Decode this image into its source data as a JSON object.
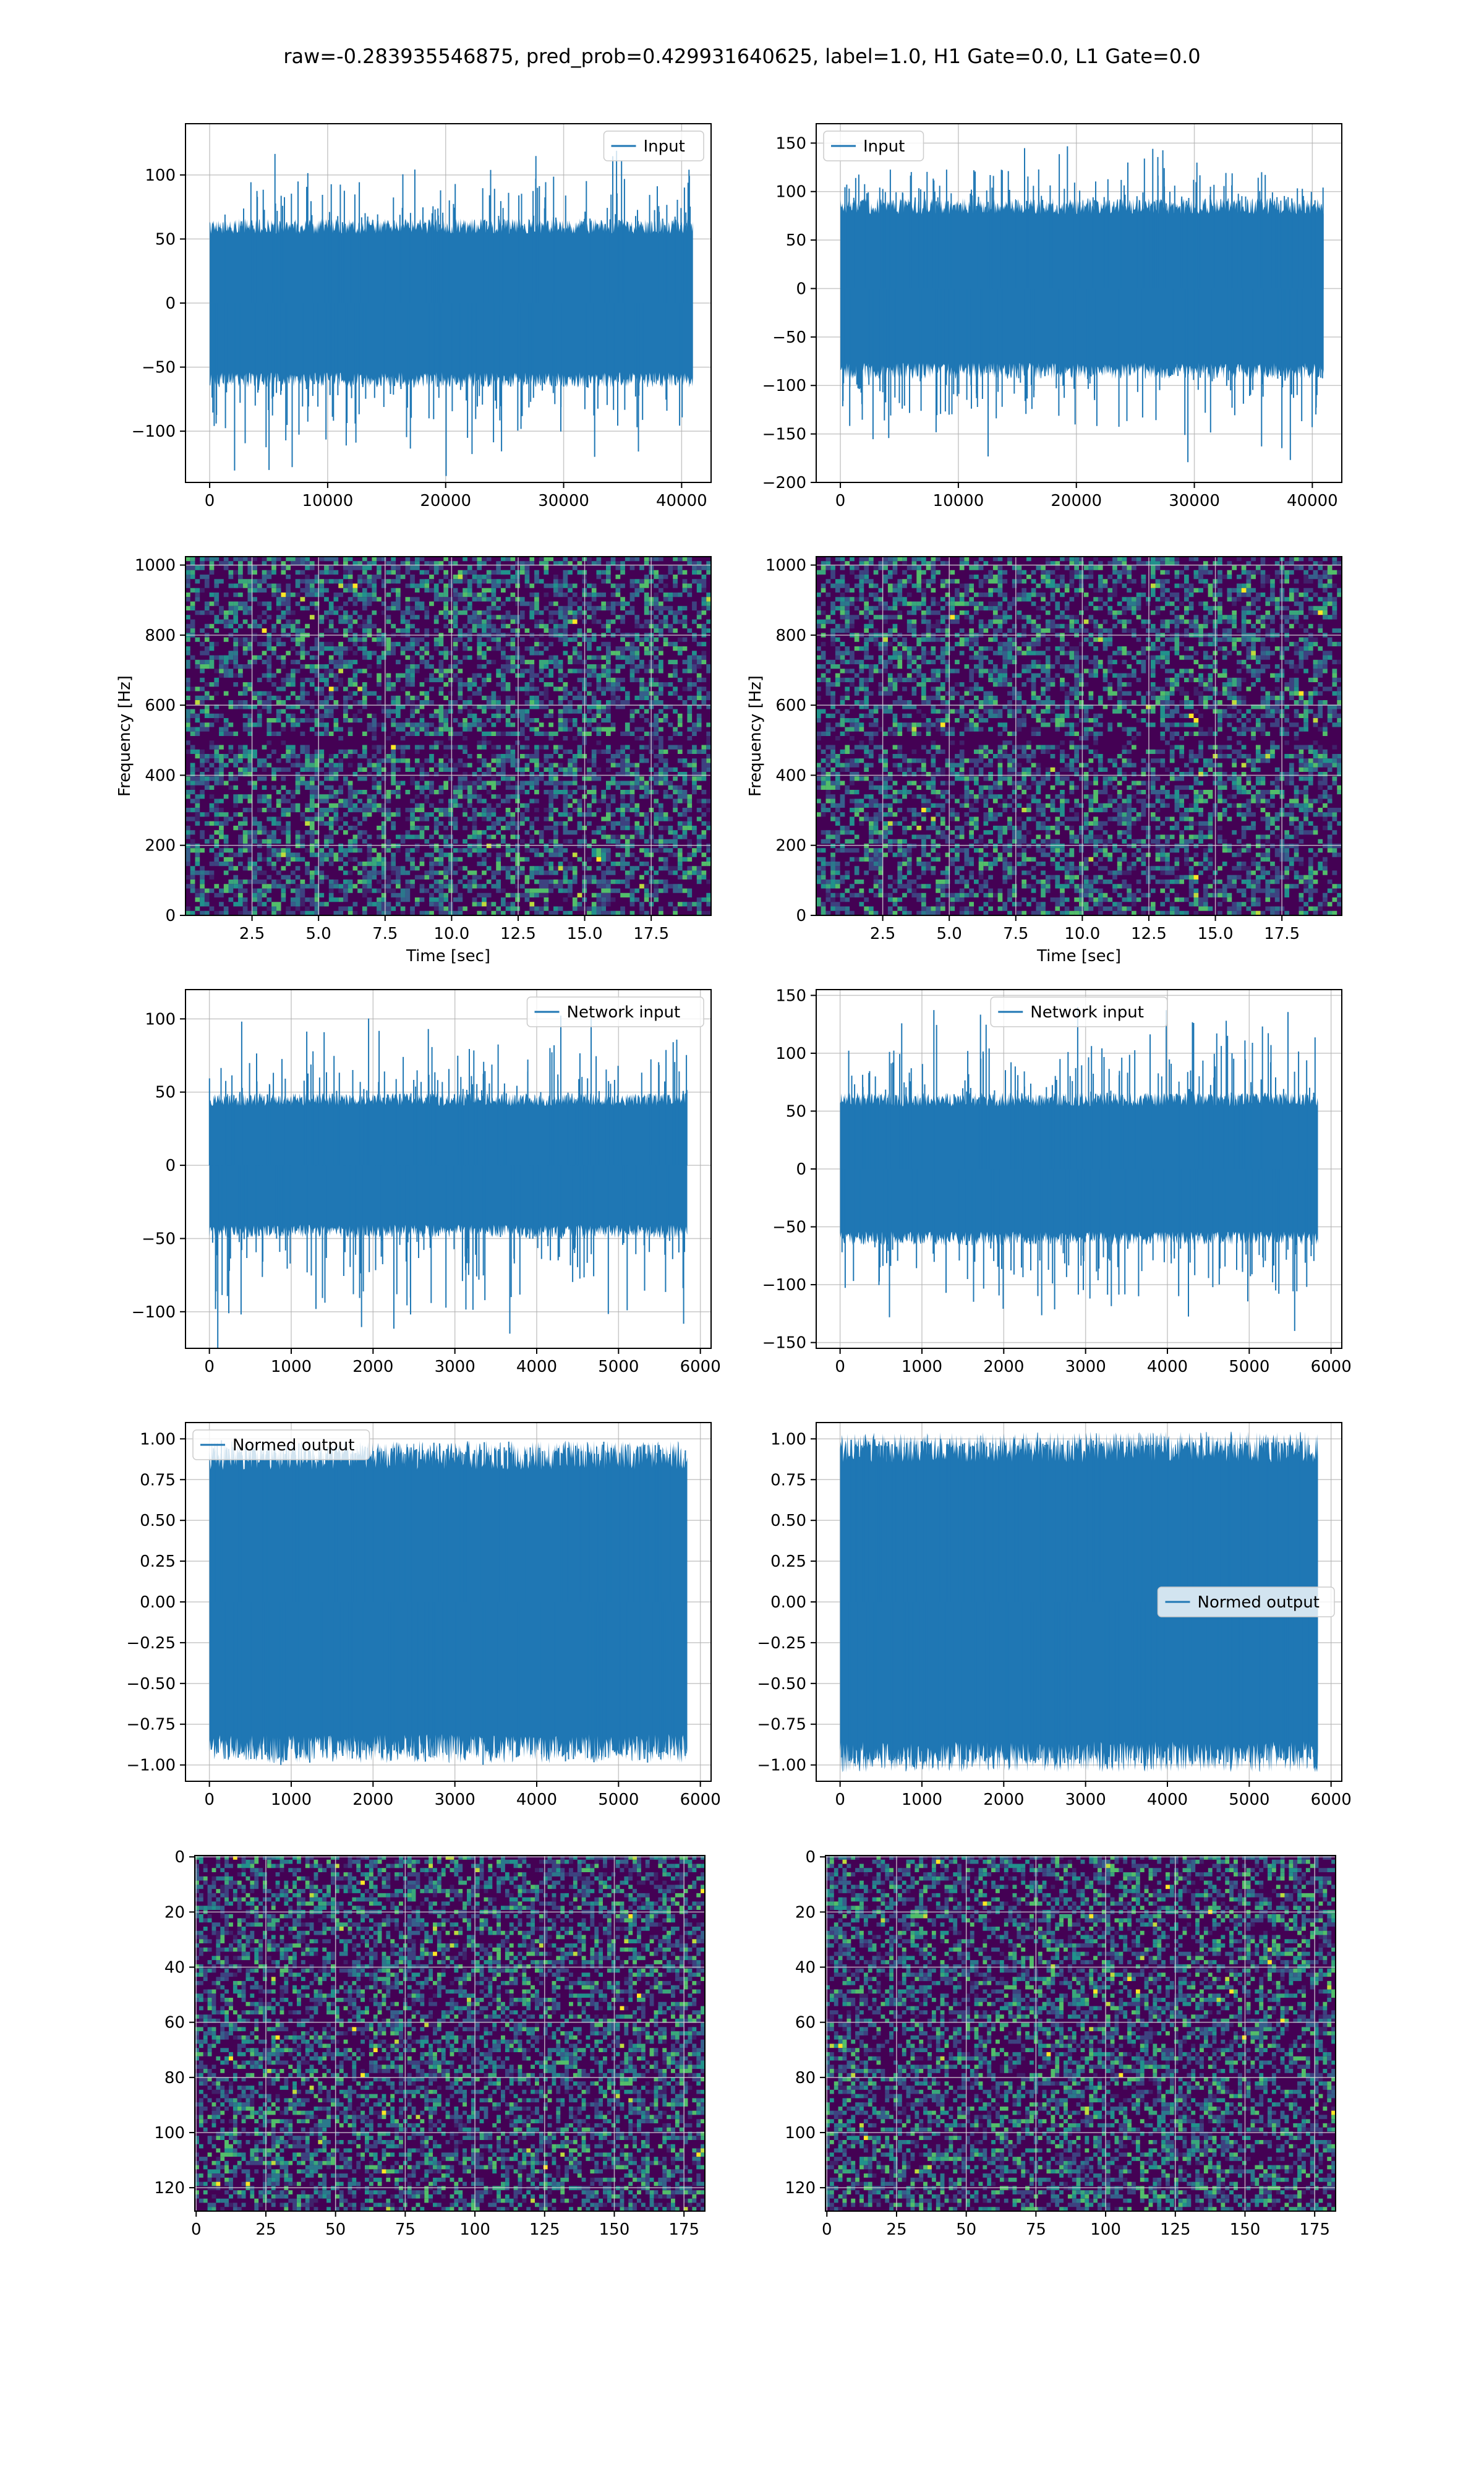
{
  "figure": {
    "suptitle": "raw=-0.283935546875, pred_prob=0.429931640625, label=1.0, H1 Gate=0.0, L1 Gate=0.0"
  },
  "colors": {
    "series": "#1f77b4",
    "grid": "#b0b0b0",
    "viridis_dark": "#440154",
    "viridis_mid": "#21918c",
    "viridis_bright": "#fde725"
  },
  "chart_data": [
    {
      "id": "h1-input",
      "type": "line",
      "title": "",
      "xlabel": "",
      "ylabel": "",
      "xlim": [
        -2048,
        42496
      ],
      "ylim": [
        -140,
        140
      ],
      "xticks": [
        0,
        10000,
        20000,
        30000,
        40000
      ],
      "yticks": [
        -100,
        -50,
        0,
        50,
        100
      ],
      "series": [
        {
          "name": "Input",
          "n": 40960,
          "x_range": [
            0,
            40960
          ],
          "core_amplitude": 60,
          "peak_max": 120,
          "peak_min": -135
        }
      ],
      "legend": "upper right",
      "grid": true
    },
    {
      "id": "l1-input",
      "type": "line",
      "title": "",
      "xlabel": "",
      "ylabel": "",
      "xlim": [
        -2048,
        42496
      ],
      "ylim": [
        -200,
        170
      ],
      "xticks": [
        0,
        10000,
        20000,
        30000,
        40000
      ],
      "yticks": [
        -200,
        -150,
        -100,
        -50,
        0,
        50,
        100,
        150
      ],
      "series": [
        {
          "name": "Input",
          "n": 40960,
          "x_range": [
            0,
            40960
          ],
          "core_amplitude": 85,
          "peak_max": 155,
          "peak_min": -185
        }
      ],
      "legend": "upper left",
      "grid": true
    },
    {
      "id": "h1-spectrogram",
      "type": "heatmap",
      "title": "",
      "xlabel": "Time [sec]",
      "ylabel": "Frequency [Hz]",
      "xlim": [
        0,
        19.75
      ],
      "ylim": [
        0,
        1024
      ],
      "xticks": [
        2.5,
        5.0,
        7.5,
        10.0,
        12.5,
        15.0,
        17.5
      ],
      "yticks": [
        0,
        200,
        400,
        600,
        800,
        1000
      ],
      "colormap": "viridis",
      "dark_band_hz": 500,
      "grid": true
    },
    {
      "id": "l1-spectrogram",
      "type": "heatmap",
      "title": "",
      "xlabel": "Time [sec]",
      "ylabel": "Frequency [Hz]",
      "xlim": [
        0,
        19.75
      ],
      "ylim": [
        0,
        1024
      ],
      "xticks": [
        2.5,
        5.0,
        7.5,
        10.0,
        12.5,
        15.0,
        17.5
      ],
      "yticks": [
        0,
        200,
        400,
        600,
        800,
        1000
      ],
      "colormap": "viridis",
      "dark_band_hz": 500,
      "grid": true
    },
    {
      "id": "h1-network-input",
      "type": "line",
      "title": "",
      "xlabel": "",
      "ylabel": "",
      "xlim": [
        -292,
        6131
      ],
      "ylim": [
        -125,
        120
      ],
      "xticks": [
        0,
        1000,
        2000,
        3000,
        4000,
        5000,
        6000
      ],
      "yticks": [
        -100,
        -50,
        0,
        50,
        100
      ],
      "series": [
        {
          "name": "Network input",
          "n": 5840,
          "x_range": [
            0,
            5840
          ],
          "core_amplitude": 45,
          "peak_max": 105,
          "peak_min": -125
        }
      ],
      "legend": "upper right",
      "grid": true
    },
    {
      "id": "l1-network-input",
      "type": "line",
      "title": "",
      "xlabel": "",
      "ylabel": "",
      "xlim": [
        -292,
        6131
      ],
      "ylim": [
        -155,
        155
      ],
      "xticks": [
        0,
        1000,
        2000,
        3000,
        4000,
        5000,
        6000
      ],
      "yticks": [
        -150,
        -100,
        -50,
        0,
        50,
        100,
        150
      ],
      "series": [
        {
          "name": "Network input",
          "n": 5840,
          "x_range": [
            0,
            5840
          ],
          "core_amplitude": 60,
          "peak_max": 140,
          "peak_min": -140
        }
      ],
      "legend": "upper center",
      "grid": true
    },
    {
      "id": "h1-normed-output",
      "type": "line",
      "title": "",
      "xlabel": "",
      "ylabel": "",
      "xlim": [
        -292,
        6131
      ],
      "ylim": [
        -1.1,
        1.1
      ],
      "xticks": [
        0,
        1000,
        2000,
        3000,
        4000,
        5000,
        6000
      ],
      "yticks": [
        -1.0,
        -0.75,
        -0.5,
        -0.25,
        0.0,
        0.25,
        0.5,
        0.75,
        1.0
      ],
      "series": [
        {
          "name": "Normed output",
          "n": 5840,
          "x_range": [
            0,
            5840
          ],
          "core_amplitude": 0.9,
          "peak_max": 1.0,
          "peak_min": -1.0
        }
      ],
      "legend": "upper left",
      "grid": true
    },
    {
      "id": "l1-normed-output",
      "type": "line",
      "title": "",
      "xlabel": "",
      "ylabel": "",
      "xlim": [
        -292,
        6131
      ],
      "ylim": [
        -1.1,
        1.1
      ],
      "xticks": [
        0,
        1000,
        2000,
        3000,
        4000,
        5000,
        6000
      ],
      "yticks": [
        -1.0,
        -0.75,
        -0.5,
        -0.25,
        0.0,
        0.25,
        0.5,
        0.75,
        1.0
      ],
      "series": [
        {
          "name": "Normed output",
          "n": 5840,
          "x_range": [
            0,
            5840
          ],
          "core_amplitude": 0.95,
          "peak_max": 1.0,
          "peak_min": -1.0
        }
      ],
      "legend": "center right",
      "grid": true
    },
    {
      "id": "h1-image",
      "type": "heatmap",
      "title": "",
      "xlabel": "",
      "ylabel": "",
      "xlim": [
        -0.5,
        182.5
      ],
      "ylim": [
        128.5,
        -0.5
      ],
      "rows": 129,
      "cols": 183,
      "xticks": [
        0,
        25,
        50,
        75,
        100,
        125,
        150,
        175
      ],
      "yticks": [
        0,
        20,
        40,
        60,
        80,
        100,
        120
      ],
      "colormap": "viridis",
      "grid": true
    },
    {
      "id": "l1-image",
      "type": "heatmap",
      "title": "",
      "xlabel": "",
      "ylabel": "",
      "xlim": [
        -0.5,
        182.5
      ],
      "ylim": [
        128.5,
        -0.5
      ],
      "rows": 129,
      "cols": 183,
      "xticks": [
        0,
        25,
        50,
        75,
        100,
        125,
        150,
        175
      ],
      "yticks": [
        0,
        20,
        40,
        60,
        80,
        100,
        120
      ],
      "colormap": "viridis",
      "grid": true
    }
  ]
}
